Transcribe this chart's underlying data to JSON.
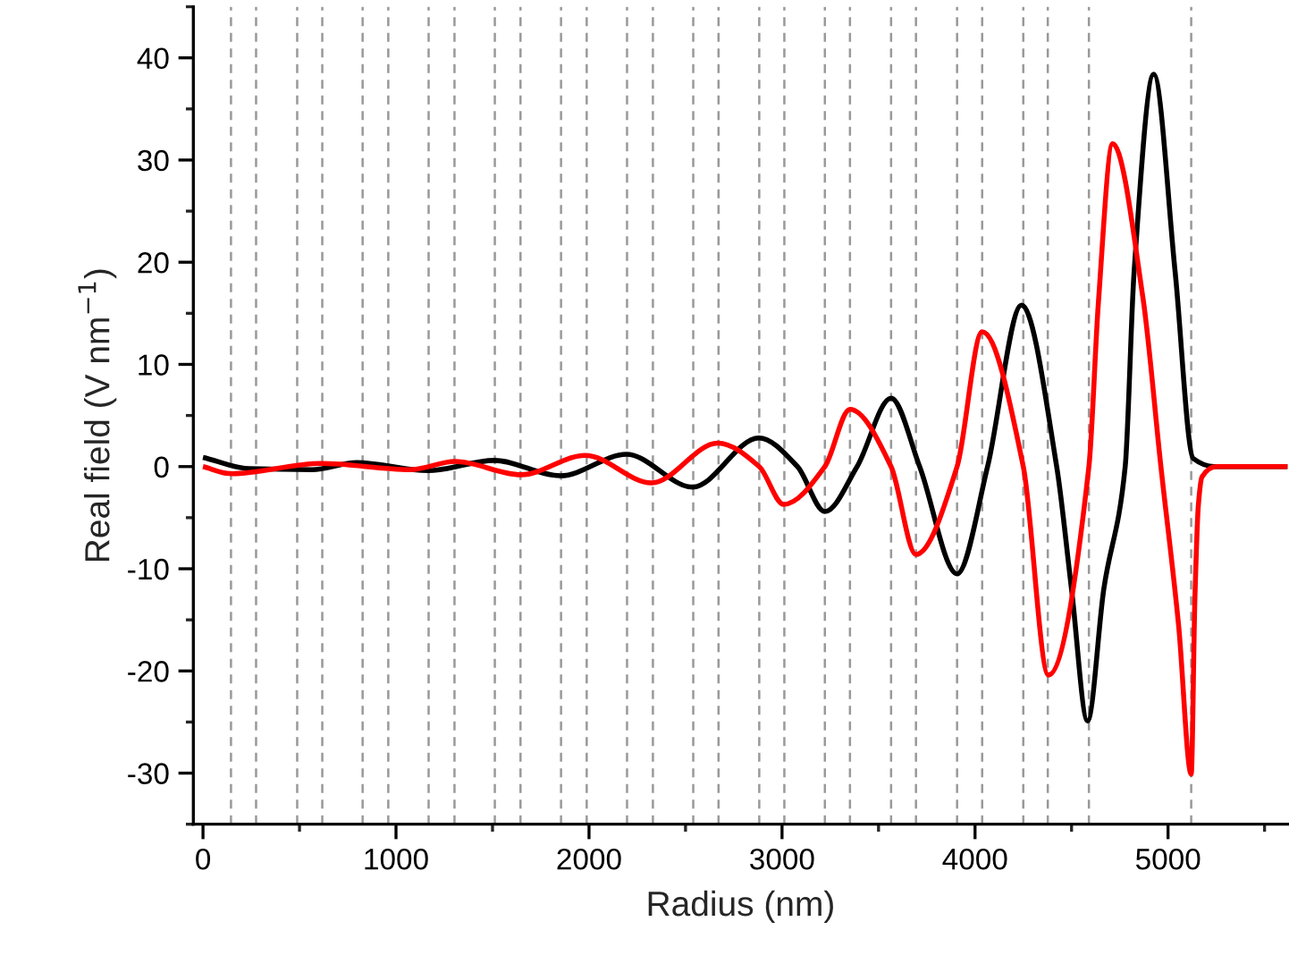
{
  "chart_data": {
    "type": "line",
    "xlabel": "Radius (nm)",
    "ylabel": "Real field (V nm$^{−1}$)",
    "xlim": [
      -50,
      5620
    ],
    "ylim": [
      -35,
      45
    ],
    "xticks": [
      0,
      1000,
      2000,
      3000,
      4000,
      5000
    ],
    "yticks": [
      -30,
      -20,
      -10,
      0,
      10,
      20,
      30,
      40
    ],
    "grid": false,
    "marker": "none",
    "line_style": "solid",
    "series": [
      {
        "color": "#000000",
        "x": [
          0,
          240,
          565,
          796,
          1167,
          1509,
          1852,
          2194,
          2537,
          2880,
          3080,
          3222,
          3389,
          3565,
          3713,
          3907,
          4065,
          4241,
          4423,
          4500,
          4583,
          4667,
          4778,
          4824,
          4926,
          5037,
          5130,
          5240,
          5620
        ],
        "values": [
          0.9,
          -0.2,
          -0.3,
          0.4,
          -0.4,
          0.6,
          -0.9,
          1.2,
          -2.0,
          2.8,
          0,
          -4.4,
          0,
          6.7,
          0,
          -10.5,
          0,
          15.8,
          0,
          -12,
          -24.9,
          -12,
          0,
          19,
          38.4,
          19,
          0.8,
          0,
          0
        ]
      },
      {
        "color": "#ff0000",
        "x": [
          0,
          148,
          611,
          1074,
          1306,
          1648,
          1981,
          2324,
          2667,
          2882,
          3009,
          3222,
          3352,
          3565,
          3694,
          3907,
          4037,
          4250,
          4380,
          4590,
          4639,
          4713,
          4870,
          4963,
          5055,
          5120,
          5139,
          5157,
          5176,
          5250,
          5620
        ],
        "values": [
          0,
          -0.7,
          0.3,
          -0.3,
          0.5,
          -0.8,
          1.1,
          -1.6,
          2.3,
          0,
          -3.7,
          0,
          5.6,
          0,
          -8.6,
          0,
          13.2,
          0,
          -20.4,
          0,
          16,
          31.6,
          16.5,
          0,
          -15.6,
          -30.1,
          -13,
          -3.8,
          -1,
          0,
          0
        ]
      }
    ],
    "ref_lines": [
      {
        "axis": "x",
        "value": 145,
        "color": "#999999",
        "line_style": "dashed"
      },
      {
        "axis": "x",
        "value": 275,
        "color": "#999999",
        "line_style": "dashed"
      },
      {
        "axis": "x",
        "value": 488,
        "color": "#999999",
        "line_style": "dashed"
      },
      {
        "axis": "x",
        "value": 618,
        "color": "#999999",
        "line_style": "dashed"
      },
      {
        "axis": "x",
        "value": 827,
        "color": "#999999",
        "line_style": "dashed"
      },
      {
        "axis": "x",
        "value": 960,
        "color": "#999999",
        "line_style": "dashed"
      },
      {
        "axis": "x",
        "value": 1169,
        "color": "#999999",
        "line_style": "dashed"
      },
      {
        "axis": "x",
        "value": 1303,
        "color": "#999999",
        "line_style": "dashed"
      },
      {
        "axis": "x",
        "value": 1512,
        "color": "#999999",
        "line_style": "dashed"
      },
      {
        "axis": "x",
        "value": 1645,
        "color": "#999999",
        "line_style": "dashed"
      },
      {
        "axis": "x",
        "value": 1855,
        "color": "#999999",
        "line_style": "dashed"
      },
      {
        "axis": "x",
        "value": 1988,
        "color": "#999999",
        "line_style": "dashed"
      },
      {
        "axis": "x",
        "value": 2197,
        "color": "#999999",
        "line_style": "dashed"
      },
      {
        "axis": "x",
        "value": 2331,
        "color": "#999999",
        "line_style": "dashed"
      },
      {
        "axis": "x",
        "value": 2540,
        "color": "#999999",
        "line_style": "dashed"
      },
      {
        "axis": "x",
        "value": 2671,
        "color": "#999999",
        "line_style": "dashed"
      },
      {
        "axis": "x",
        "value": 2882,
        "color": "#999999",
        "line_style": "dashed"
      },
      {
        "axis": "x",
        "value": 3012,
        "color": "#999999",
        "line_style": "dashed"
      },
      {
        "axis": "x",
        "value": 3222,
        "color": "#999999",
        "line_style": "dashed"
      },
      {
        "axis": "x",
        "value": 3352,
        "color": "#999999",
        "line_style": "dashed"
      },
      {
        "axis": "x",
        "value": 3565,
        "color": "#999999",
        "line_style": "dashed"
      },
      {
        "axis": "x",
        "value": 3694,
        "color": "#999999",
        "line_style": "dashed"
      },
      {
        "axis": "x",
        "value": 3907,
        "color": "#999999",
        "line_style": "dashed"
      },
      {
        "axis": "x",
        "value": 4037,
        "color": "#999999",
        "line_style": "dashed"
      },
      {
        "axis": "x",
        "value": 4250,
        "color": "#999999",
        "line_style": "dashed"
      },
      {
        "axis": "x",
        "value": 4377,
        "color": "#999999",
        "line_style": "dashed"
      },
      {
        "axis": "x",
        "value": 4590,
        "color": "#999999",
        "line_style": "dashed"
      },
      {
        "axis": "x",
        "value": 5120,
        "color": "#999999",
        "line_style": "dashed"
      }
    ]
  }
}
